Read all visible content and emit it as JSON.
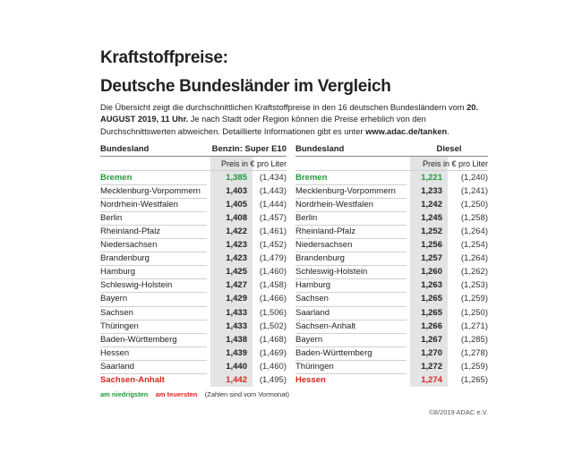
{
  "title": [
    "Kraftstoffpreise:",
    "Deutsche Bundesländer im Vergleich"
  ],
  "description": [
    "Die Übersicht zeigt die durchschnittlichen Kraftstoffpreise in den 16 deutschen Bundesländern vom ",
    "20. AUGUST 2019, 11 Uhr.",
    " Je nach Stadt oder Region können die Preise erheblich von den Durchschnittswerten abweichen. Detaillierte Informationen gibt es unter ",
    "www.adac.de/tanken",
    "."
  ],
  "tables": [
    {
      "header": {
        "bundesland": "Bundesland",
        "fuel": "Benzin: Super E10"
      },
      "subheader": "Preis in € pro Liter",
      "rows": [
        {
          "name": "Bremen",
          "price": "1,385",
          "previous": "(1,434)",
          "color": "#1f9a3a"
        },
        {
          "name": "Mecklenburg-Vorpommern",
          "price": "1,403",
          "previous": "(1,443)"
        },
        {
          "name": "Nordrhein-Westfalen",
          "price": "1,405",
          "previous": "(1,444)"
        },
        {
          "name": "Berlin",
          "price": "1,408",
          "previous": "(1,457)"
        },
        {
          "name": "Rheinland-Pfalz",
          "price": "1,422",
          "previous": "(1,461)"
        },
        {
          "name": "Niedersachsen",
          "price": "1,423",
          "previous": "(1,452)"
        },
        {
          "name": "Brandenburg",
          "price": "1,423",
          "previous": "(1,479)"
        },
        {
          "name": "Hamburg",
          "price": "1,425",
          "previous": "(1,460)"
        },
        {
          "name": "Schleswig-Holstein",
          "price": "1,427",
          "previous": "(1,458)"
        },
        {
          "name": "Bayern",
          "price": "1,429",
          "previous": "(1,466)"
        },
        {
          "name": "Sachsen",
          "price": "1,433",
          "previous": "(1,506)"
        },
        {
          "name": "Thüringen",
          "price": "1,433",
          "previous": "(1,502)"
        },
        {
          "name": "Baden-Württemberg",
          "price": "1,438",
          "previous": "(1,468)"
        },
        {
          "name": "Hessen",
          "price": "1,439",
          "previous": "(1,469)"
        },
        {
          "name": "Saarland",
          "price": "1,440",
          "previous": "(1,460)"
        },
        {
          "name": "Sachsen-Anhalt",
          "price": "1,442",
          "previous": "(1,495)",
          "color": "#d7261e"
        }
      ]
    },
    {
      "header": {
        "bundesland": "Bundesland",
        "fuel": "Diesel"
      },
      "subheader": "Preis in € pro Liter",
      "rows": [
        {
          "name": "Bremen",
          "price": "1,221",
          "previous": "(1,240)",
          "color": "#1f9a3a"
        },
        {
          "name": "Mecklenburg-Vorpommern",
          "price": "1,233",
          "previous": "(1,241)"
        },
        {
          "name": "Nordrhein-Westfalen",
          "price": "1,242",
          "previous": "(1,250)"
        },
        {
          "name": "Berlin",
          "price": "1,245",
          "previous": "(1,258)"
        },
        {
          "name": "Rheinland-Pfalz",
          "price": "1,252",
          "previous": "(1,264)"
        },
        {
          "name": "Niedersachsen",
          "price": "1,256",
          "previous": "(1,254)"
        },
        {
          "name": "Brandenburg",
          "price": "1,257",
          "previous": "(1,264)"
        },
        {
          "name": "Schleswig-Holstein",
          "price": "1,260",
          "previous": "(1,262)"
        },
        {
          "name": "Hamburg",
          "price": "1,263",
          "previous": "(1,253)"
        },
        {
          "name": "Sachsen",
          "price": "1,265",
          "previous": "(1,259)"
        },
        {
          "name": "Saarland",
          "price": "1,265",
          "previous": "(1,250)"
        },
        {
          "name": "Sachsen-Anhalt",
          "price": "1,266",
          "previous": "(1,271)"
        },
        {
          "name": "Bayern",
          "price": "1,267",
          "previous": "(1,285)"
        },
        {
          "name": "Baden-Württemberg",
          "price": "1,270",
          "previous": "(1,278)"
        },
        {
          "name": "Thüringen",
          "price": "1,272",
          "previous": "(1,259)"
        },
        {
          "name": "Hessen",
          "price": "1,274",
          "previous": "(1,265)",
          "color": "#d7261e"
        }
      ]
    }
  ],
  "legend": [
    {
      "text": "am niedrigsten",
      "color": "#1f9a3a"
    },
    {
      "text": "am teuersten",
      "color": "#d7261e"
    },
    {
      "text": "(Zahlen sind vom Vormonat)",
      "color": "#333333"
    }
  ],
  "copyright": "©8/2019 ADAC e.V."
}
